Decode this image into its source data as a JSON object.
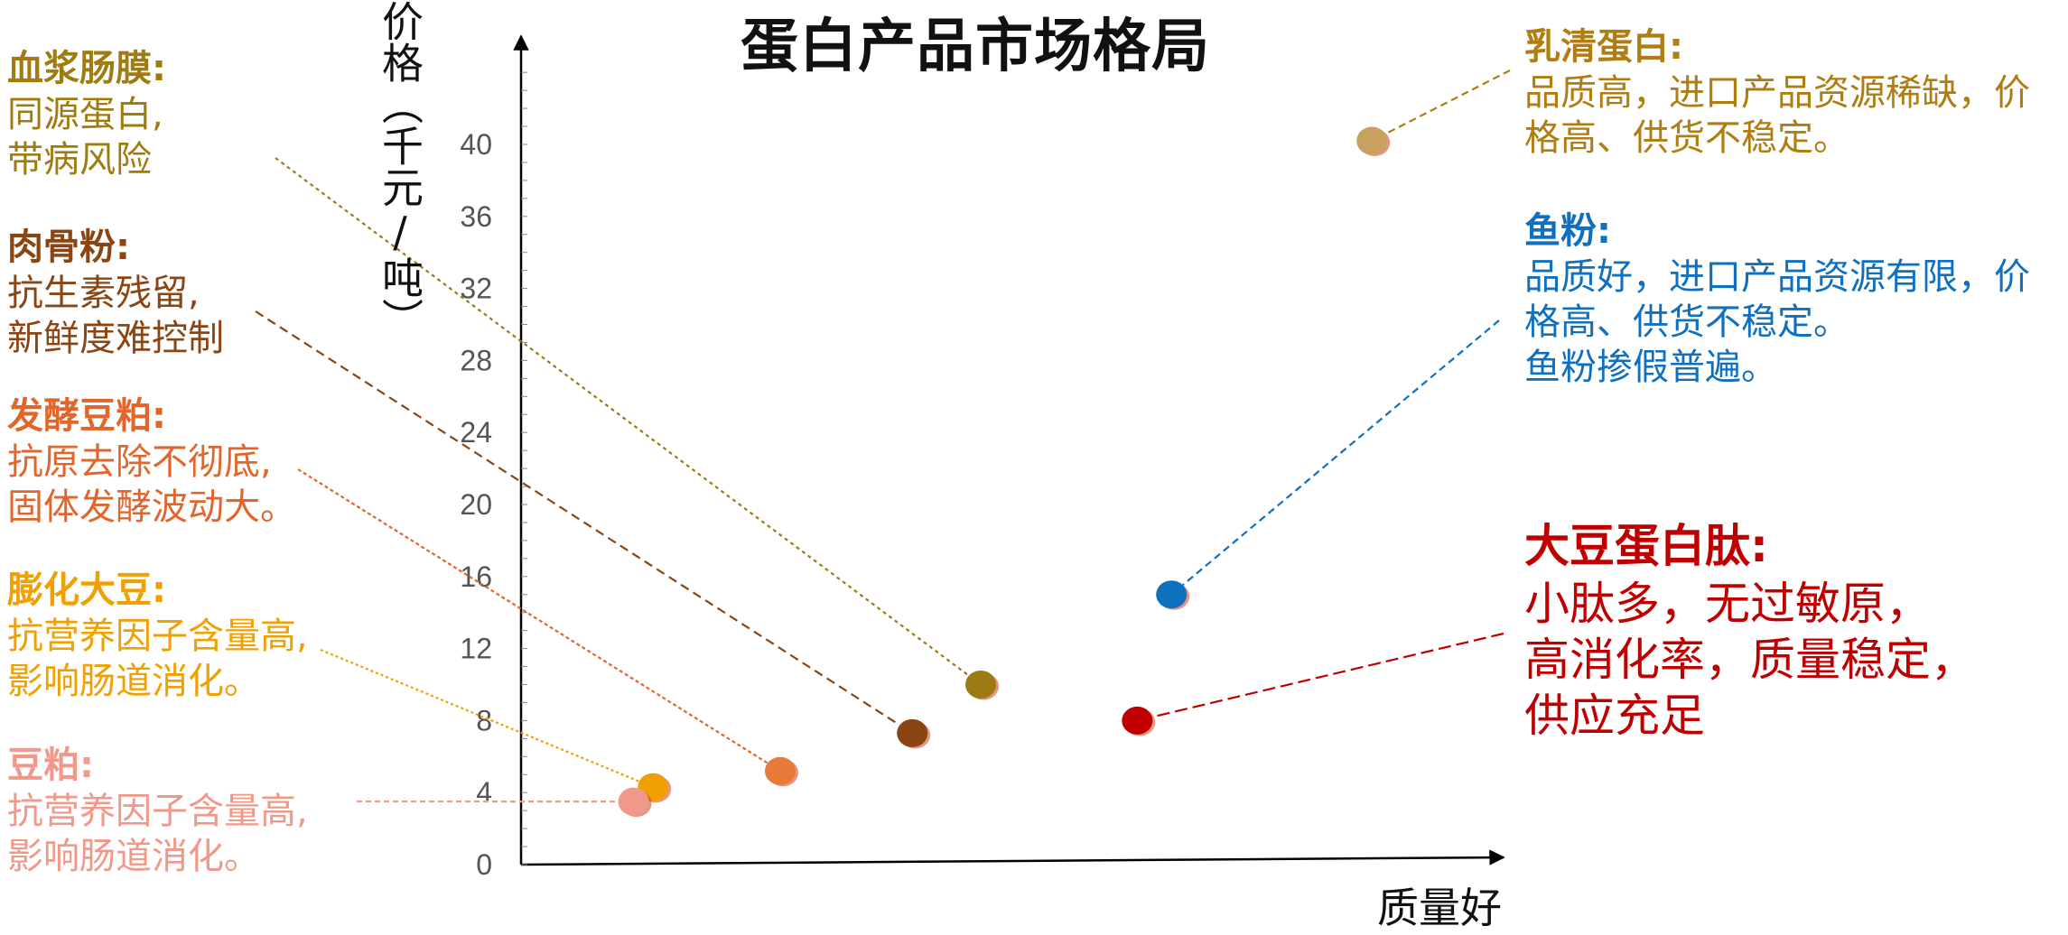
{
  "colors": {
    "axis": "#000000",
    "tick_text": "#555555",
    "plasma": "#8C6D0E",
    "meatbone": "#8B4513",
    "fermented": "#E0662B",
    "puffed": "#F0A000",
    "soymeal": "#F0988A",
    "whey": "#B07D10",
    "fishmeal": "#1070C0",
    "soypeptide": "#C00000"
  },
  "chart_data": {
    "type": "scatter",
    "title": "蛋白产品市场格局",
    "xlabel": "质量好",
    "ylabel": "价格（千元/吨）",
    "ylim": [
      0,
      44
    ],
    "yticks": [
      "0",
      "4",
      "8",
      "12",
      "16",
      "20",
      "24",
      "28",
      "32",
      "36",
      "40"
    ],
    "xlim": [
      0,
      100
    ],
    "grid": false,
    "series": [
      {
        "name": "血浆肠膜",
        "x": 47,
        "y": 10,
        "color": "#9C7A14"
      },
      {
        "name": "肉骨粉",
        "x": 40,
        "y": 7.3,
        "color": "#8B4513"
      },
      {
        "name": "发酵豆粕",
        "x": 26.5,
        "y": 5.2,
        "color": "#E87A3A"
      },
      {
        "name": "膨化大豆",
        "x": 13.5,
        "y": 4.3,
        "color": "#F0A000"
      },
      {
        "name": "豆粕",
        "x": 11.5,
        "y": 3.5,
        "color": "#F0988A"
      },
      {
        "name": "乳清蛋白",
        "x": 87,
        "y": 40.2,
        "color": "#C8A060"
      },
      {
        "name": "鱼粉",
        "x": 66.5,
        "y": 15,
        "color": "#1070C0"
      },
      {
        "name": "大豆蛋白肽",
        "x": 63,
        "y": 8,
        "color": "#C00000"
      }
    ]
  },
  "annotations": {
    "plasma": {
      "head": "血浆肠膜:",
      "lines": [
        "同源蛋白,",
        "带病风险"
      ]
    },
    "meatbone": {
      "head": "肉骨粉:",
      "lines": [
        "抗生素残留,",
        "新鲜度难控制"
      ]
    },
    "fermented": {
      "head": "发酵豆粕:",
      "lines": [
        "抗原去除不彻底,",
        "固体发酵波动大。"
      ]
    },
    "puffed": {
      "head": "膨化大豆:",
      "lines": [
        "抗营养因子含量高,",
        "影响肠道消化。"
      ]
    },
    "soymeal": {
      "head": "豆粕:",
      "lines": [
        "抗营养因子含量高,",
        "影响肠道消化。"
      ]
    },
    "whey": {
      "head": "乳清蛋白:",
      "lines": [
        "品质高，进口产品资源稀缺，价",
        "格高、供货不稳定。"
      ]
    },
    "fishmeal": {
      "head": "鱼粉:",
      "lines": [
        "品质好，进口产品资源有限，价",
        "格高、供货不稳定。",
        "鱼粉掺假普遍。"
      ]
    },
    "soypeptide": {
      "head": "大豆蛋白肽:",
      "lines": [
        "小肽多，无过敏原，",
        "高消化率，质量稳定，",
        "供应充足"
      ]
    }
  }
}
